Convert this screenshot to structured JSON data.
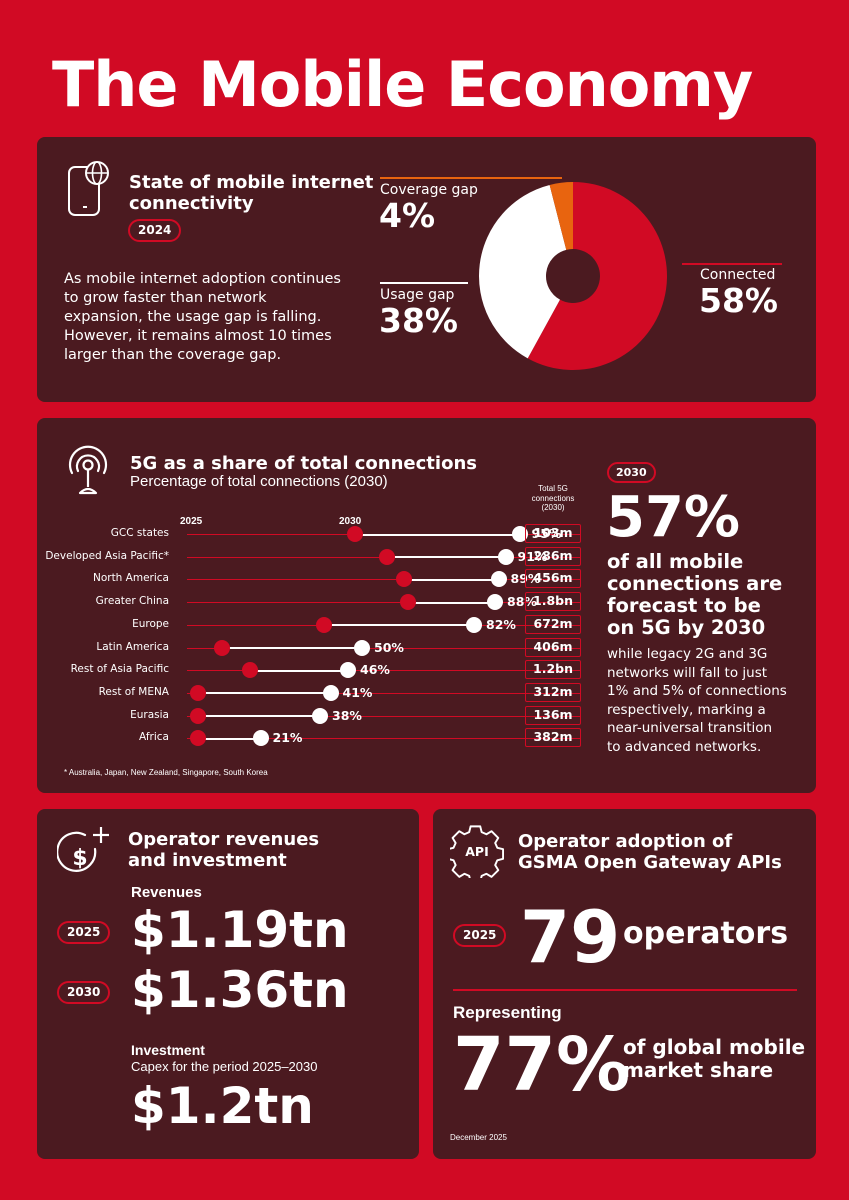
{
  "title": "The Mobile Economy",
  "colors": {
    "background": "#d10a24",
    "panel": "#4b1a20",
    "accent_orange": "#e8640f",
    "white": "#ffffff"
  },
  "connectivity": {
    "title_line1": "State of mobile internet",
    "title_line2": "connectivity",
    "year": "2024",
    "description": [
      "As mobile internet adoption continues",
      "to grow faster than network",
      "expansion, the usage gap is falling.",
      "However, it remains almost 10 times",
      "larger than the coverage gap."
    ],
    "coverage_label": "Coverage gap",
    "coverage_value": "4%",
    "usage_label": "Usage gap",
    "usage_value": "38%",
    "connected_label": "Connected",
    "connected_value": "58%"
  },
  "fiveg": {
    "title": "5G as a share of total connections",
    "subtitle": "Percentage of total connections (2030)",
    "label_2025": "2025",
    "label_2030": "2030",
    "total_header": [
      "Total 5G",
      "connections",
      "(2030)"
    ],
    "footnote": "* Australia, Japan, New Zealand, Singapore, South Korea",
    "year_badge": "2030",
    "big_value": "57%",
    "big_text": [
      "of all mobile",
      "connections are",
      "forecast to be",
      "on 5G by 2030"
    ],
    "detail": [
      "while legacy 2G and 3G",
      "networks will fall to just",
      "1% and 5% of connections",
      "respectively, marking a",
      "near-universal transition",
      "to advanced networks."
    ]
  },
  "chart_data": {
    "type": "dumbbell",
    "title": "5G as a share of total connections",
    "subtitle": "Percentage of total connections (2030)",
    "categories": [
      "GCC states",
      "Developed Asia Pacific*",
      "North America",
      "Greater China",
      "Europe",
      "Latin America",
      "Rest of Asia Pacific",
      "Rest of MENA",
      "Eurasia",
      "Africa"
    ],
    "series": [
      {
        "name": "2025",
        "values": [
          48,
          57,
          62,
          63,
          39,
          10,
          18,
          3,
          3,
          3
        ]
      },
      {
        "name": "2030",
        "values": [
          95,
          91,
          89,
          88,
          82,
          50,
          46,
          41,
          38,
          21
        ]
      }
    ],
    "value_labels": [
      "95%",
      "91%",
      "89%",
      "88%",
      "82%",
      "50%",
      "46%",
      "41%",
      "38%",
      "21%"
    ],
    "totals_2030": [
      "103m",
      "286m",
      "456m",
      "1.8bn",
      "672m",
      "406m",
      "1.2bn",
      "312m",
      "136m",
      "382m"
    ],
    "xlim": [
      0,
      100
    ]
  },
  "revenues": {
    "title_line1": "Operator revenues",
    "title_line2": "and investment",
    "revenues_label": "Revenues",
    "year1": "2025",
    "value1": "$1.19tn",
    "year2": "2030",
    "value2": "$1.36tn",
    "investment_label": "Investment",
    "investment_sub": "Capex for the period 2025–2030",
    "investment_value": "$1.2tn"
  },
  "apis": {
    "title_line1": "Operator adoption of",
    "title_line2": "GSMA Open Gateway APIs",
    "icon_text": "API",
    "year": "2025",
    "count": "79",
    "count_label": "operators",
    "representing": "Representing",
    "share": "77%",
    "share_label_line1": "of global mobile",
    "share_label_line2": "market share",
    "date": "December 2025"
  }
}
